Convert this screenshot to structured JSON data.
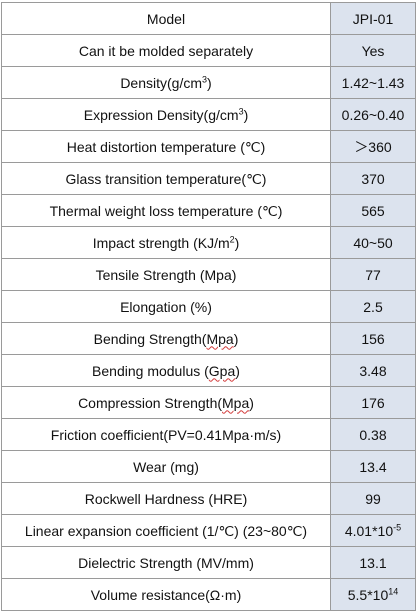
{
  "table": {
    "header": {
      "property": "Model",
      "value": "JPI-01"
    },
    "rows": [
      {
        "property": "Can it be molded separately",
        "value": "Yes"
      },
      {
        "property_main": "Density(g/cm",
        "property_sup": "3",
        "property_after": ")",
        "value": "1.42~1.43"
      },
      {
        "property_main": "Expression Density(g/cm",
        "property_sup": "3",
        "property_after": ")",
        "value": "0.26~0.40"
      },
      {
        "property": "Heat distortion temperature  (℃)",
        "value": "＞360"
      },
      {
        "property": "Glass transition temperature(℃)",
        "value": "370"
      },
      {
        "property": "Thermal weight loss temperature  (℃)",
        "value": "565"
      },
      {
        "property_main": "Impact strength (KJ/m",
        "property_sup": "2",
        "property_after": ")",
        "value": "40~50"
      },
      {
        "property": "Tensile Strength  (Mpa)",
        "value": "77"
      },
      {
        "property": "Elongation (%)",
        "value": "2.5"
      },
      {
        "property_prefix": "Bending Strength(",
        "property_marked": "Mpa",
        "property_after": ")",
        "value": "156"
      },
      {
        "property_prefix": "Bending modulus  (",
        "property_marked": "Gpa",
        "property_after": ")",
        "value": "3.48"
      },
      {
        "property_prefix": "Compression Strength(",
        "property_marked": "Mpa",
        "property_after": ")",
        "value": "176"
      },
      {
        "property": "Friction coefficient(PV=0.41Mpa·m/s)",
        "value": "0.38"
      },
      {
        "property": "Wear (mg)",
        "value": "13.4"
      },
      {
        "property": "Rockwell Hardness  (HRE)",
        "value": "99"
      },
      {
        "property": "Linear expansion coefficient (1/℃) (23~80℃)",
        "value_main": "4.01*10",
        "value_sup": "-5"
      },
      {
        "property": "Dielectric Strength  (MV/mm)",
        "value": "13.1"
      },
      {
        "property": "Volume resistance(Ω·m)",
        "value_main": "5.5*10",
        "value_sup": "14"
      }
    ]
  }
}
